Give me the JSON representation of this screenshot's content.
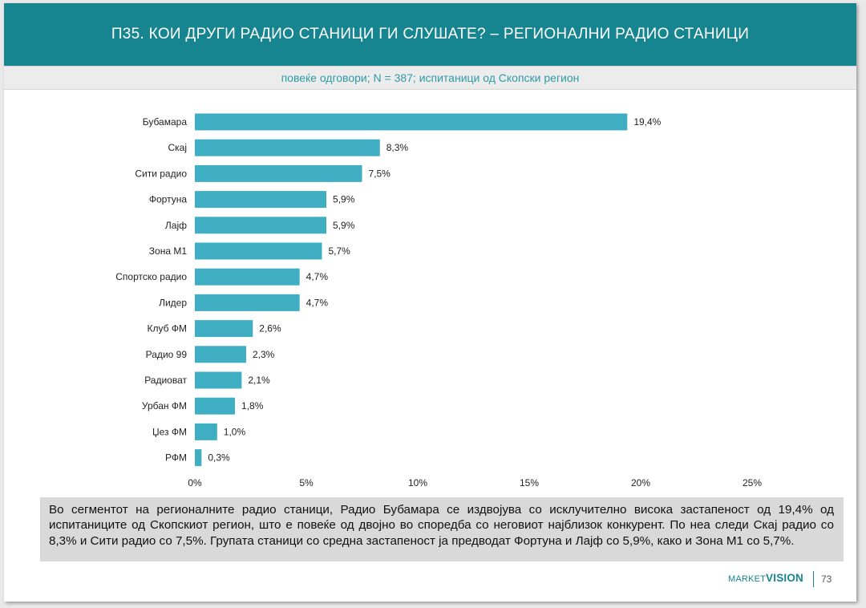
{
  "header": {
    "title": "П35. КОИ ДРУГИ РАДИО СТАНИЦИ ГИ СЛУШАТЕ? – РЕГИОНАЛНИ РАДИО СТАНИЦИ",
    "subtitle": "повеќе одговори; N = 387; испитаници од Скопски регион"
  },
  "colors": {
    "accent": "#16858f",
    "bar": "#3faec2",
    "subtitle": "#2f9aa6"
  },
  "chart_data": {
    "type": "bar",
    "orientation": "horizontal",
    "categories": [
      "Бубамара",
      "Скај",
      "Сити радио",
      "Фортуна",
      "Лајф",
      "Зона М1",
      "Спортско радио",
      "Лидер",
      "Клуб ФМ",
      "Радио 99",
      "Радиоват",
      "Урбан ФМ",
      "Џез ФМ",
      "РФМ"
    ],
    "values": [
      19.4,
      8.3,
      7.5,
      5.9,
      5.9,
      5.7,
      4.7,
      4.7,
      2.6,
      2.3,
      2.1,
      1.8,
      1.0,
      0.3
    ],
    "value_labels": [
      "19,4%",
      "8,3%",
      "7,5%",
      "5,9%",
      "5,9%",
      "5,7%",
      "4,7%",
      "4,7%",
      "2,6%",
      "2,3%",
      "2,1%",
      "1,8%",
      "1,0%",
      "0,3%"
    ],
    "xlim": [
      0,
      25
    ],
    "x_ticks": [
      0,
      5,
      10,
      15,
      20,
      25
    ],
    "x_tick_labels": [
      "0%",
      "5%",
      "10%",
      "15%",
      "20%",
      "25%"
    ],
    "grid": false,
    "legend": "none"
  },
  "summary": {
    "text": "Во сегментот на регионалните радио станици, Радио Бубамара се издвојува со исклучително висока застапеност од 19,4% од испитаниците од Скопскиот регион, што е повеќе од двојно во споредба со неговиот најблизок конкурент. По неа следи Скај радио со 8,3% и Сити радио со 7,5%. Групата станици со средна застапеност ја предводат Фортуна и Лајф со 5,9%, како и Зона М1 со 5,7%."
  },
  "footer": {
    "brand_part1": "MARKET",
    "brand_part2": "VISION",
    "page_number": "73"
  }
}
